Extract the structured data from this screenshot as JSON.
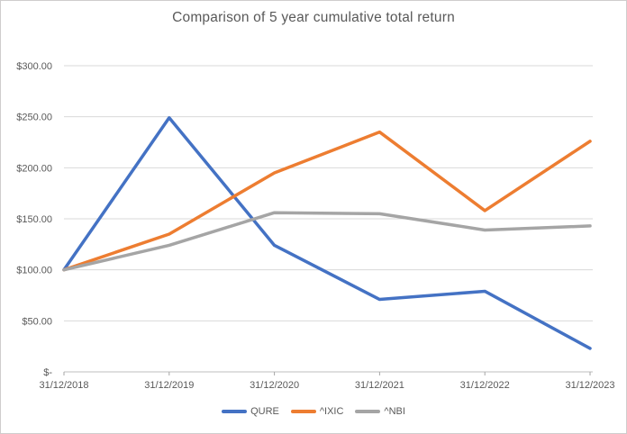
{
  "window": {
    "background": "#FFFFFF",
    "border_color": "#CFCDCD"
  },
  "chart_data": {
    "type": "line",
    "title": "Comparison of 5 year cumulative total return",
    "categories": [
      "31/12/2018",
      "31/12/2019",
      "31/12/2020",
      "31/12/2021",
      "31/12/2022",
      "31/12/2023"
    ],
    "series": [
      {
        "name": "QURE",
        "color": "#4472C4",
        "values": [
          100,
          249,
          124,
          71,
          79,
          23
        ]
      },
      {
        "name": "^IXIC",
        "color": "#ED7D31",
        "values": [
          100,
          135,
          195,
          235,
          158,
          226
        ]
      },
      {
        "name": "^NBI",
        "color": "#A5A5A5",
        "values": [
          100,
          124,
          156,
          155,
          139,
          143
        ]
      }
    ],
    "xlabel": "",
    "ylabel": "",
    "ylim": [
      0,
      300
    ],
    "y_tick_step": 50,
    "y_tick_labels": [
      "$-",
      "$50.00",
      "$100.00",
      "$150.00",
      "$200.00",
      "$250.00",
      "$300.00"
    ],
    "grid": "horizontal",
    "legend_position": "bottom",
    "styles": {
      "title_color": "#595959",
      "axis_label_color": "#595959",
      "gridline_color": "#D9D9D9",
      "axis_line_color": "#BFBFBF",
      "tick_color": "#A6A6A6",
      "line_width": 3.5
    }
  }
}
